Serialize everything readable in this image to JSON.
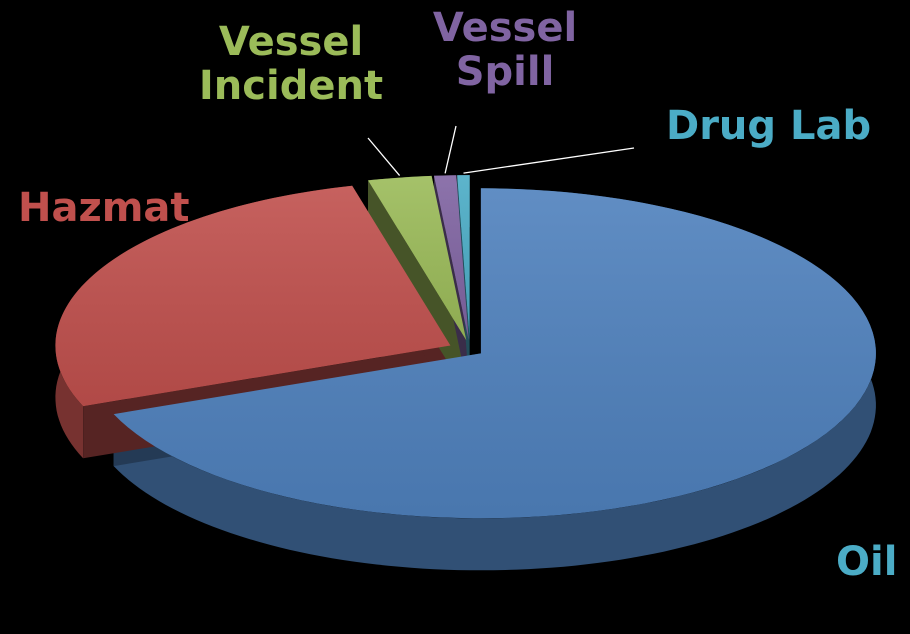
{
  "chart_data": {
    "type": "pie",
    "title": "",
    "style": "3d-exploded",
    "legend": "none",
    "background": "#000000",
    "slices": [
      {
        "label": "Oil",
        "value": 69.0,
        "color": "#4f81bd",
        "label_color": "#4bacc6"
      },
      {
        "label": "Hazmat",
        "value": 27.0,
        "color": "#c0504d",
        "label_color": "#c0504d"
      },
      {
        "label": "Vessel Incident",
        "value": 2.6,
        "color": "#9bbb59",
        "label_color": "#9bbb59"
      },
      {
        "label": "Vessel Spill",
        "value": 0.9,
        "color": "#8064a2",
        "label_color": "#8064a2"
      },
      {
        "label": "Drug Lab",
        "value": 0.5,
        "color": "#4bacc6",
        "label_color": "#4bacc6"
      }
    ]
  }
}
